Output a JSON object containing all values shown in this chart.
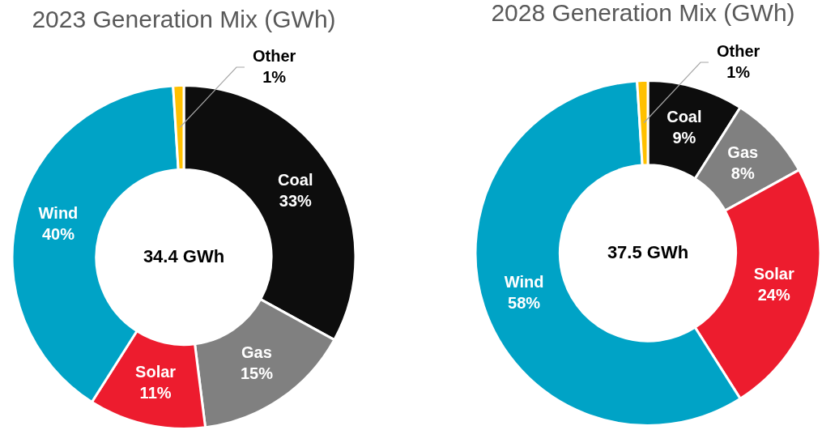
{
  "chart_data": [
    {
      "type": "donut",
      "title": "2023 Generation Mix (GWh)",
      "categories": [
        "Coal",
        "Gas",
        "Solar",
        "Wind",
        "Other"
      ],
      "values": [
        33,
        15,
        11,
        40,
        1
      ],
      "colors": [
        "#0d0d0d",
        "#808080",
        "#ed1c2e",
        "#00a3c6",
        "#ffc000"
      ],
      "value_labels": [
        "33%",
        "15%",
        "11%",
        "40%",
        "1%"
      ],
      "annotations": [
        "34.4 GWh"
      ]
    },
    {
      "type": "donut",
      "title": "2028 Generation Mix (GWh)",
      "categories": [
        "Coal",
        "Gas",
        "Solar",
        "Wind",
        "Other"
      ],
      "values": [
        9,
        8,
        24,
        58,
        1
      ],
      "colors": [
        "#0d0d0d",
        "#808080",
        "#ed1c2e",
        "#00a3c6",
        "#ffc000"
      ],
      "value_labels": [
        "9%",
        "8%",
        "24%",
        "58%",
        "1%"
      ],
      "annotations": [
        "37.5 GWh"
      ]
    }
  ]
}
